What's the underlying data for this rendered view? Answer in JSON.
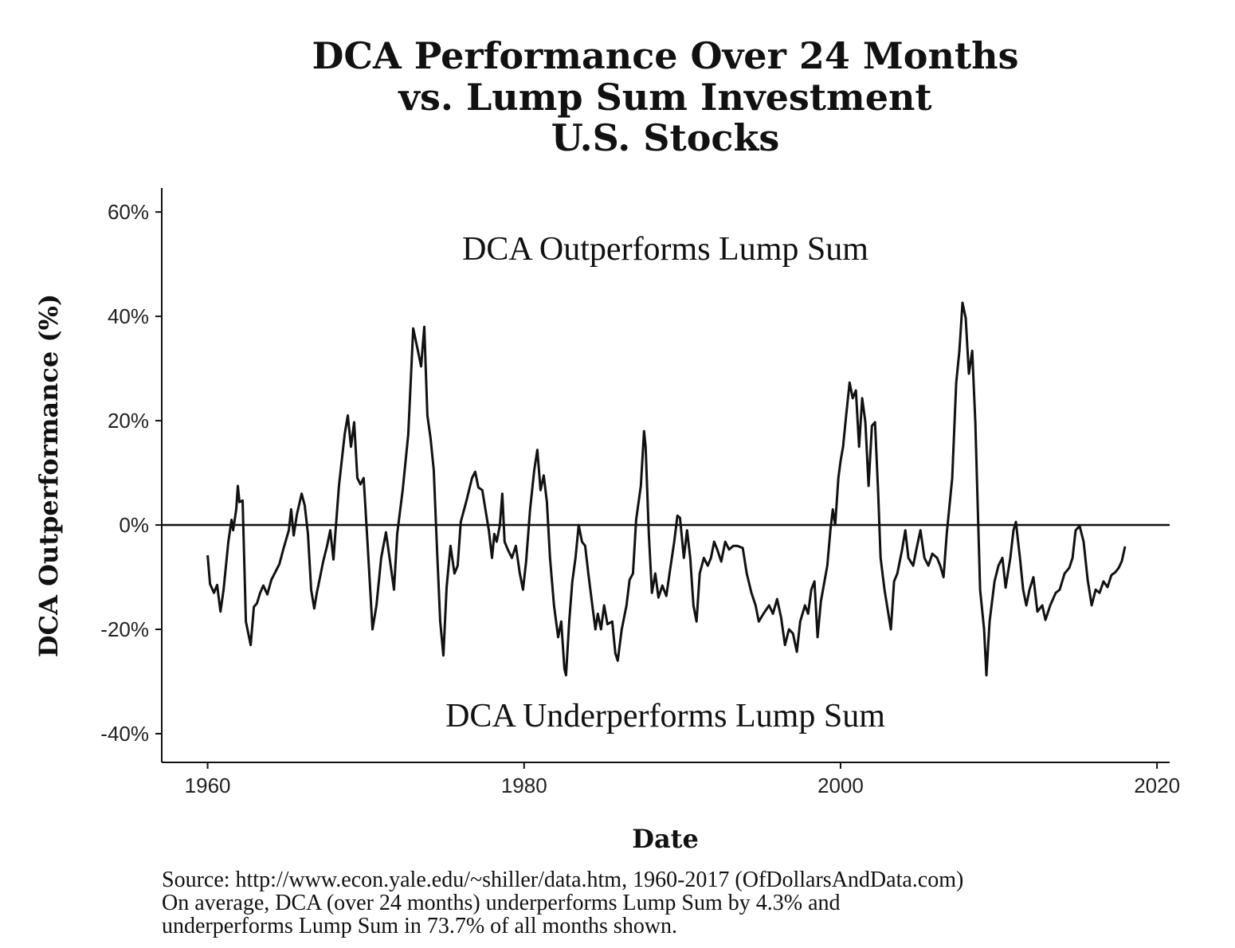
{
  "chart_data": {
    "type": "line",
    "title": [
      "DCA Performance Over 24 Months",
      "vs. Lump Sum Investment",
      "U.S. Stocks"
    ],
    "xlabel": "Date",
    "ylabel": "DCA Outperformance (%)",
    "xlim": [
      1957.1,
      2020.8
    ],
    "ylim": [
      -45.5,
      64.6
    ],
    "x_ticks": [
      1960,
      1980,
      2000,
      2020
    ],
    "x_tick_labels": [
      "1960",
      "1980",
      "2000",
      "2020"
    ],
    "y_ticks": [
      60,
      40,
      20,
      0,
      -20,
      -40
    ],
    "y_tick_labels": [
      "60%",
      "40%",
      "20%",
      "0%",
      "-20%",
      "-40%"
    ],
    "grid": false,
    "reference_line": 0,
    "line_color": "#111111",
    "annotations": {
      "upper": "DCA Outperforms Lump Sum",
      "lower": "DCA Underperforms Lump Sum"
    },
    "caption": [
      "Source:  http://www.econ.yale.edu/~shiller/data.htm, 1960-2017 (OfDollarsAndData.com)",
      "On average, DCA (over 24 months) underperforms Lump Sum by 4.3% and",
      "underperforms Lump Sum in 73.7% of all months shown."
    ],
    "series": [
      {
        "points": [
          [
            1960.0,
            -5.8
          ],
          [
            1960.15,
            -11.3
          ],
          [
            1960.4,
            -13
          ],
          [
            1960.6,
            -11.5
          ],
          [
            1960.81,
            -16.6
          ],
          [
            1961.01,
            -12.4
          ],
          [
            1961.31,
            -3.2
          ],
          [
            1961.51,
            1
          ],
          [
            1961.61,
            -1
          ],
          [
            1961.81,
            3
          ],
          [
            1961.91,
            7.5
          ],
          [
            1962.01,
            4.4
          ],
          [
            1962.21,
            4.7
          ],
          [
            1962.42,
            -18.5
          ],
          [
            1962.72,
            -23
          ],
          [
            1962.92,
            -15.7
          ],
          [
            1963.12,
            -15
          ],
          [
            1963.32,
            -13
          ],
          [
            1963.52,
            -11.6
          ],
          [
            1963.77,
            -13.3
          ],
          [
            1964.03,
            -10.5
          ],
          [
            1964.53,
            -7.5
          ],
          [
            1964.78,
            -4.7
          ],
          [
            1965.13,
            -1
          ],
          [
            1965.28,
            3
          ],
          [
            1965.44,
            -2
          ],
          [
            1965.64,
            2
          ],
          [
            1965.94,
            6
          ],
          [
            1966.14,
            3.7
          ],
          [
            1966.34,
            -1.7
          ],
          [
            1966.54,
            -12.4
          ],
          [
            1966.74,
            -16
          ],
          [
            1966.9,
            -13
          ],
          [
            1967.05,
            -10.8
          ],
          [
            1967.3,
            -7
          ],
          [
            1967.55,
            -4
          ],
          [
            1967.75,
            -1
          ],
          [
            1967.95,
            -6.6
          ],
          [
            1968.05,
            -2.4
          ],
          [
            1968.3,
            7.5
          ],
          [
            1968.66,
            17.4
          ],
          [
            1968.86,
            21
          ],
          [
            1969.06,
            15
          ],
          [
            1969.26,
            19.7
          ],
          [
            1969.46,
            9
          ],
          [
            1969.66,
            7.8
          ],
          [
            1969.86,
            9
          ],
          [
            1970.07,
            -1.7
          ],
          [
            1970.22,
            -9.3
          ],
          [
            1970.42,
            -20
          ],
          [
            1970.67,
            -15.4
          ],
          [
            1970.97,
            -6.3
          ],
          [
            1971.27,
            -1.4
          ],
          [
            1971.53,
            -7
          ],
          [
            1971.78,
            -12.4
          ],
          [
            1971.98,
            -1.7
          ],
          [
            1972.33,
            6.7
          ],
          [
            1972.68,
            17.4
          ],
          [
            1972.99,
            37.7
          ],
          [
            1973.29,
            33.4
          ],
          [
            1973.49,
            30.4
          ],
          [
            1973.69,
            38
          ],
          [
            1973.89,
            21
          ],
          [
            1974.09,
            16.6
          ],
          [
            1974.29,
            10.5
          ],
          [
            1974.5,
            -4.7
          ],
          [
            1974.7,
            -18.5
          ],
          [
            1974.9,
            -25
          ],
          [
            1975.1,
            -12
          ],
          [
            1975.35,
            -4
          ],
          [
            1975.6,
            -9.3
          ],
          [
            1975.8,
            -7.8
          ],
          [
            1976.0,
            0.6
          ],
          [
            1976.36,
            4.7
          ],
          [
            1976.71,
            9
          ],
          [
            1976.91,
            10.2
          ],
          [
            1977.11,
            7.2
          ],
          [
            1977.36,
            6.7
          ],
          [
            1977.61,
            2
          ],
          [
            1977.77,
            -1
          ],
          [
            1977.97,
            -6.3
          ],
          [
            1978.12,
            -1.7
          ],
          [
            1978.27,
            -3.2
          ],
          [
            1978.47,
            0
          ],
          [
            1978.62,
            6
          ],
          [
            1978.77,
            -3.2
          ],
          [
            1978.97,
            -4.7
          ],
          [
            1979.23,
            -6.3
          ],
          [
            1979.48,
            -4
          ],
          [
            1979.73,
            -9.3
          ],
          [
            1979.93,
            -12.4
          ],
          [
            1980.13,
            -7
          ],
          [
            1980.38,
            3
          ],
          [
            1980.64,
            10.5
          ],
          [
            1980.84,
            14.4
          ],
          [
            1981.04,
            6.7
          ],
          [
            1981.24,
            9.5
          ],
          [
            1981.44,
            4.4
          ],
          [
            1981.64,
            -6.3
          ],
          [
            1981.89,
            -15.4
          ],
          [
            1982.15,
            -21.5
          ],
          [
            1982.35,
            -18.5
          ],
          [
            1982.55,
            -27.6
          ],
          [
            1982.65,
            -28.8
          ],
          [
            1982.85,
            -18.5
          ],
          [
            1983.05,
            -10.8
          ],
          [
            1983.25,
            -6.3
          ],
          [
            1983.45,
            0
          ],
          [
            1983.66,
            -3.2
          ],
          [
            1983.86,
            -4
          ],
          [
            1984.06,
            -9.3
          ],
          [
            1984.31,
            -15.4
          ],
          [
            1984.51,
            -20
          ],
          [
            1984.66,
            -17
          ],
          [
            1984.86,
            -20
          ],
          [
            1985.06,
            -15.4
          ],
          [
            1985.27,
            -19
          ],
          [
            1985.57,
            -18.5
          ],
          [
            1985.77,
            -24.6
          ],
          [
            1985.92,
            -26
          ],
          [
            1986.17,
            -20
          ],
          [
            1986.47,
            -15.4
          ],
          [
            1986.67,
            -10.5
          ],
          [
            1986.88,
            -9.3
          ],
          [
            1987.08,
            1
          ],
          [
            1987.38,
            7.5
          ],
          [
            1987.58,
            18
          ],
          [
            1987.68,
            15
          ],
          [
            1987.88,
            -1.7
          ],
          [
            1988.08,
            -13
          ],
          [
            1988.29,
            -9.3
          ],
          [
            1988.49,
            -13.9
          ],
          [
            1988.74,
            -11.6
          ],
          [
            1988.99,
            -13.6
          ],
          [
            1989.19,
            -9.3
          ],
          [
            1989.49,
            -3.2
          ],
          [
            1989.69,
            1.8
          ],
          [
            1989.85,
            1.4
          ],
          [
            1990.1,
            -6.3
          ],
          [
            1990.3,
            -1
          ],
          [
            1990.5,
            -6.3
          ],
          [
            1990.7,
            -15.4
          ],
          [
            1990.9,
            -18.5
          ],
          [
            1991.1,
            -9.3
          ],
          [
            1991.36,
            -6.3
          ],
          [
            1991.61,
            -7.8
          ],
          [
            1991.81,
            -6.3
          ],
          [
            1992.01,
            -3.2
          ],
          [
            1992.21,
            -4.7
          ],
          [
            1992.46,
            -7
          ],
          [
            1992.71,
            -3.2
          ],
          [
            1992.96,
            -4.7
          ],
          [
            1993.22,
            -4
          ],
          [
            1993.47,
            -4
          ],
          [
            1993.82,
            -4.4
          ],
          [
            1994.07,
            -9.3
          ],
          [
            1994.37,
            -13
          ],
          [
            1994.63,
            -15.4
          ],
          [
            1994.83,
            -18.5
          ],
          [
            1995.13,
            -17
          ],
          [
            1995.48,
            -15.4
          ],
          [
            1995.73,
            -17
          ],
          [
            1995.99,
            -14.2
          ],
          [
            1996.24,
            -17.7
          ],
          [
            1996.49,
            -23
          ],
          [
            1996.74,
            -20
          ],
          [
            1996.99,
            -20.8
          ],
          [
            1997.24,
            -24.3
          ],
          [
            1997.45,
            -18.5
          ],
          [
            1997.75,
            -15.4
          ],
          [
            1997.95,
            -17
          ],
          [
            1998.15,
            -12.4
          ],
          [
            1998.35,
            -10.8
          ],
          [
            1998.55,
            -21.5
          ],
          [
            1998.76,
            -14.6
          ],
          [
            1999.16,
            -7.8
          ],
          [
            1999.36,
            -1
          ],
          [
            1999.51,
            3
          ],
          [
            1999.66,
            0
          ],
          [
            1999.86,
            9
          ],
          [
            2000.01,
            12.4
          ],
          [
            2000.16,
            15
          ],
          [
            2000.36,
            21.2
          ],
          [
            2000.57,
            27.3
          ],
          [
            2000.77,
            24.3
          ],
          [
            2000.97,
            25.8
          ],
          [
            2001.17,
            15
          ],
          [
            2001.37,
            24.3
          ],
          [
            2001.57,
            19.7
          ],
          [
            2001.77,
            7.5
          ],
          [
            2001.98,
            19
          ],
          [
            2002.18,
            19.7
          ],
          [
            2002.38,
            6
          ],
          [
            2002.53,
            -6.3
          ],
          [
            2002.78,
            -12.4
          ],
          [
            2002.98,
            -16.2
          ],
          [
            2003.18,
            -20
          ],
          [
            2003.38,
            -10.8
          ],
          [
            2003.59,
            -9.3
          ],
          [
            2003.89,
            -4.7
          ],
          [
            2004.09,
            -1
          ],
          [
            2004.29,
            -6.3
          ],
          [
            2004.59,
            -7.8
          ],
          [
            2004.79,
            -4.7
          ],
          [
            2005.05,
            -1
          ],
          [
            2005.3,
            -6.3
          ],
          [
            2005.55,
            -7.8
          ],
          [
            2005.8,
            -5.5
          ],
          [
            2006.1,
            -6.3
          ],
          [
            2006.3,
            -7.8
          ],
          [
            2006.51,
            -10
          ],
          [
            2006.71,
            -1.7
          ],
          [
            2007.06,
            9
          ],
          [
            2007.31,
            27.3
          ],
          [
            2007.51,
            33.4
          ],
          [
            2007.71,
            42.6
          ],
          [
            2007.91,
            39.7
          ],
          [
            2008.11,
            29
          ],
          [
            2008.32,
            33.4
          ],
          [
            2008.52,
            19.7
          ],
          [
            2008.82,
            -12.4
          ],
          [
            2009.07,
            -20
          ],
          [
            2009.22,
            -28.8
          ],
          [
            2009.42,
            -18.5
          ],
          [
            2009.73,
            -10.8
          ],
          [
            2009.98,
            -7.8
          ],
          [
            2010.23,
            -6.3
          ],
          [
            2010.43,
            -12
          ],
          [
            2010.73,
            -6.3
          ],
          [
            2010.93,
            -1
          ],
          [
            2011.08,
            0.6
          ],
          [
            2011.34,
            -6.3
          ],
          [
            2011.54,
            -12.4
          ],
          [
            2011.74,
            -15.4
          ],
          [
            2011.94,
            -12.4
          ],
          [
            2012.19,
            -10
          ],
          [
            2012.44,
            -16.6
          ],
          [
            2012.75,
            -15.4
          ],
          [
            2012.95,
            -18.2
          ],
          [
            2013.25,
            -15.4
          ],
          [
            2013.6,
            -13
          ],
          [
            2013.85,
            -12.4
          ],
          [
            2014.16,
            -9.3
          ],
          [
            2014.46,
            -8.2
          ],
          [
            2014.66,
            -6.3
          ],
          [
            2014.86,
            -1
          ],
          [
            2015.11,
            -0.2
          ],
          [
            2015.36,
            -3.2
          ],
          [
            2015.62,
            -10.5
          ],
          [
            2015.87,
            -15.4
          ],
          [
            2016.12,
            -12.4
          ],
          [
            2016.37,
            -13
          ],
          [
            2016.62,
            -10.8
          ],
          [
            2016.87,
            -11.9
          ],
          [
            2017.12,
            -9.6
          ],
          [
            2017.38,
            -9
          ],
          [
            2017.58,
            -8.2
          ],
          [
            2017.78,
            -6.9
          ],
          [
            2017.98,
            -4.1
          ]
        ]
      }
    ]
  }
}
